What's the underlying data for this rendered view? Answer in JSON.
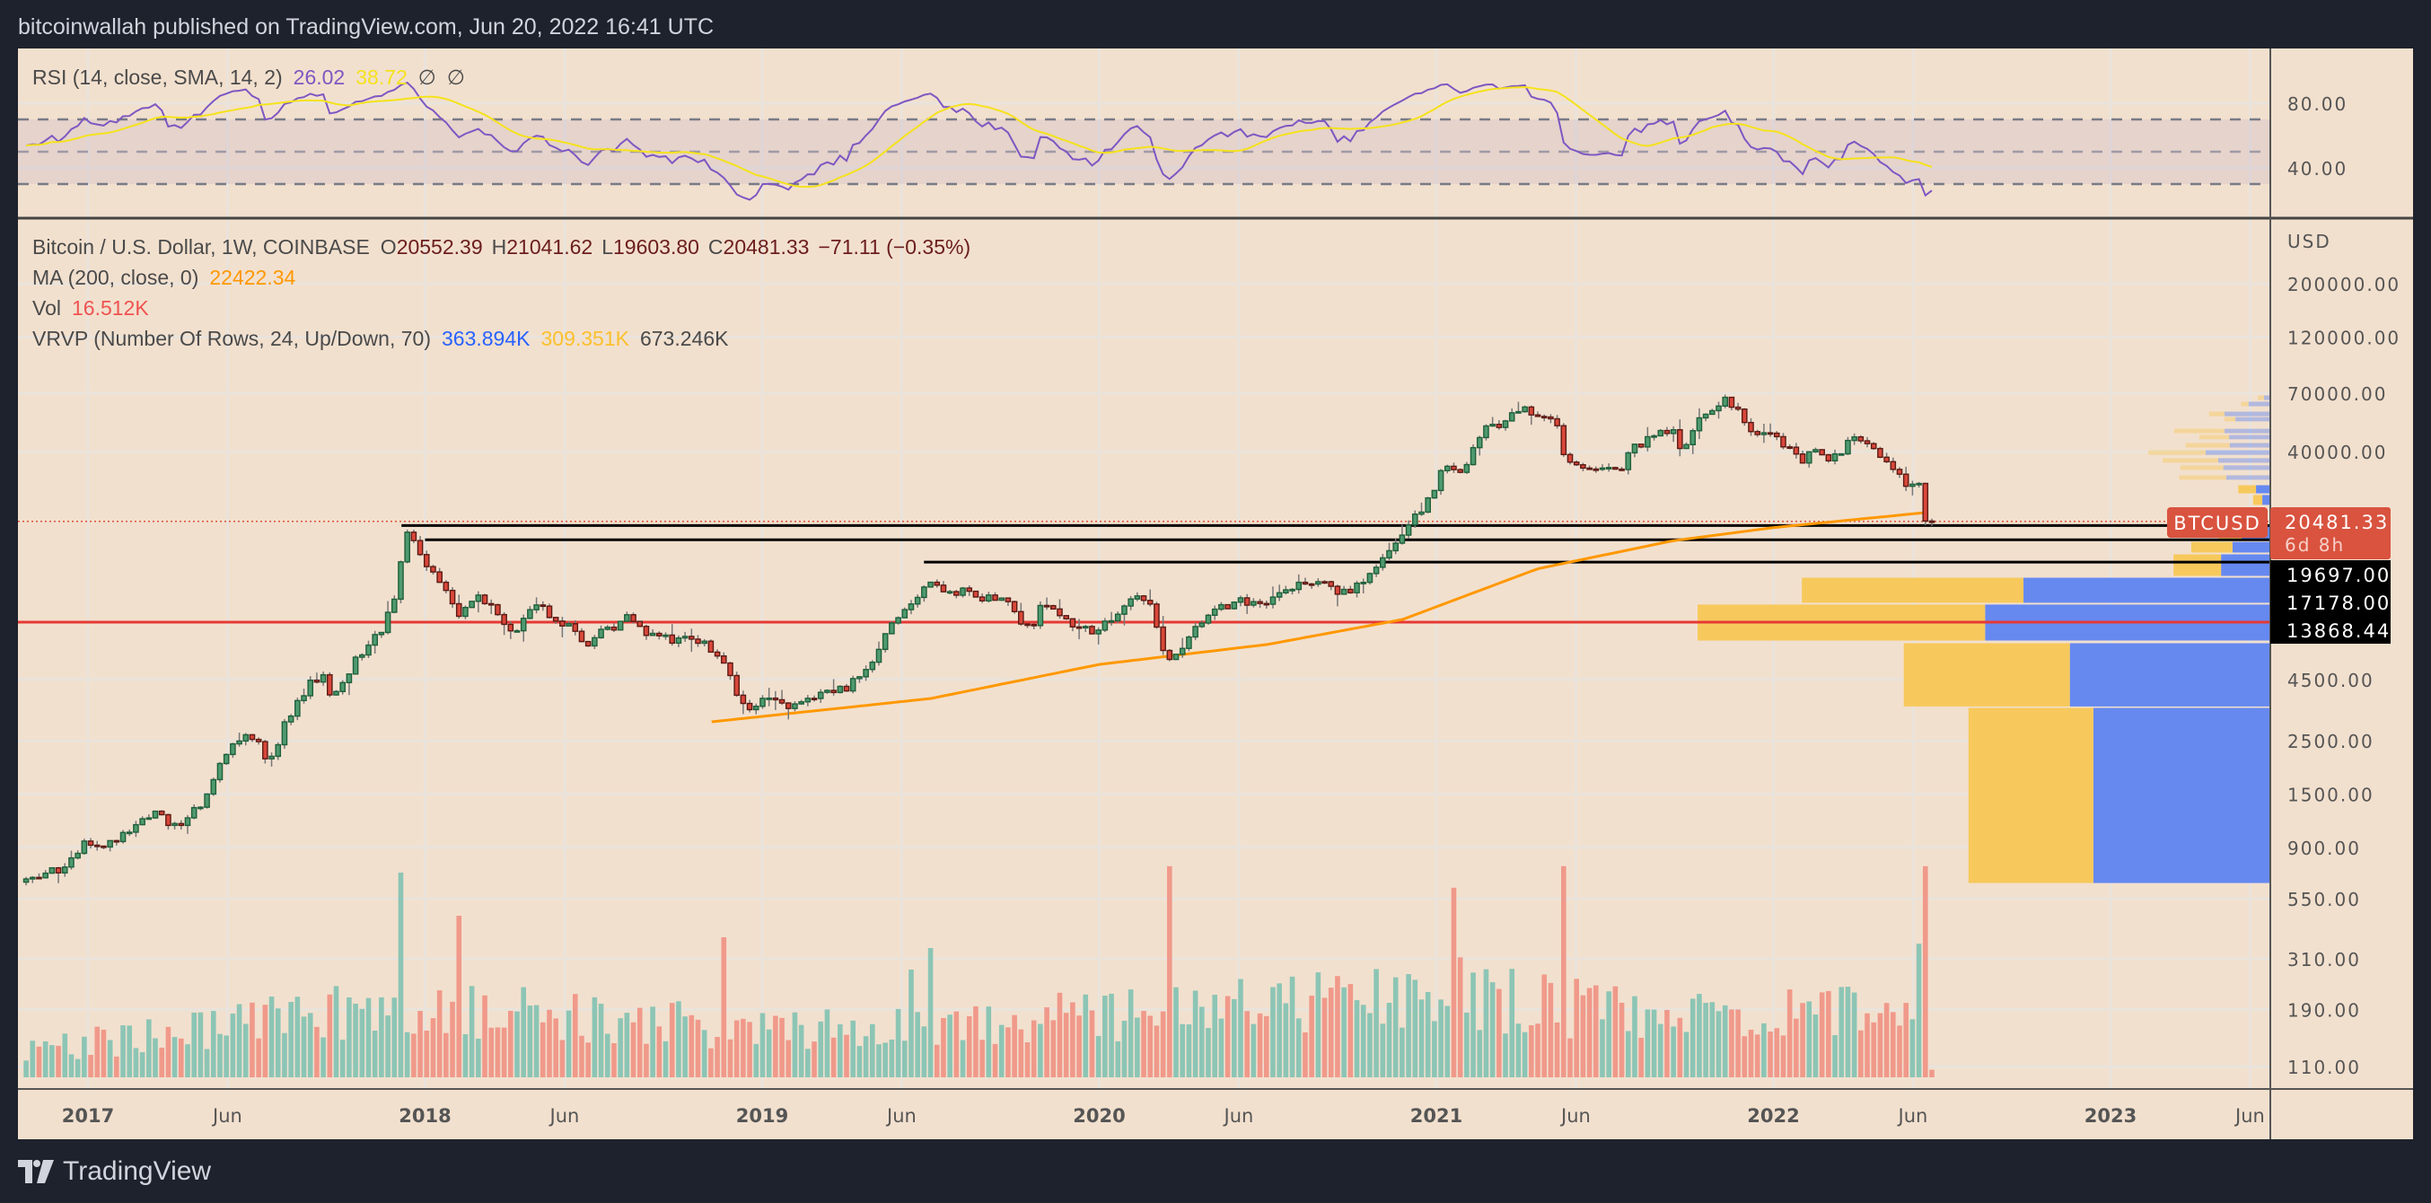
{
  "header": {
    "publish_text": "bitcoinwallah published on TradingView.com, Jun 20, 2022 16:41 UTC"
  },
  "footer": {
    "brand": "TradingView"
  },
  "rsi_legend": {
    "label": "RSI (14, close, SMA, 14, 2)",
    "rsi_value": "26.02",
    "sma_value": "38.72",
    "icon1": "∅",
    "icon2": "∅"
  },
  "price_legend": {
    "symbol": "Bitcoin / U.S. Dollar, 1W, COINBASE",
    "o_label": "O",
    "o": "20552.39",
    "h_label": "H",
    "h": "21041.62",
    "l_label": "L",
    "l": "19603.80",
    "c_label": "C",
    "c": "20481.33",
    "change": "−71.11 (−0.35%)",
    "ma_label": "MA (200, close, 0)",
    "ma_value": "22422.34",
    "vol_label": "Vol",
    "vol_value": "16.512K",
    "vrvp_label": "VRVP (Number Of Rows, 24, Up/Down, 70)",
    "vrvp_up": "363.894K",
    "vrvp_down": "309.351K",
    "vrvp_total": "673.246K"
  },
  "colors": {
    "bg": "#f2e0ce",
    "up": "#4e9a6e",
    "up_border": "#1f5f3b",
    "down": "#d9473a",
    "down_border": "#5a1a14",
    "vol_up": "#8cc5b5",
    "vol_down": "#f0998a",
    "ma": "#ff9800",
    "rsi": "#7e57c2",
    "rsi_sma": "#f5e21b",
    "vrvp_up": "#6689f0",
    "vrvp_down": "#f7c95c",
    "price_label": "#d9533f"
  },
  "chart_data": {
    "type": "candlestick",
    "title": "Bitcoin / U.S. Dollar, 1W, COINBASE",
    "scale": "log",
    "currency_label": "USD",
    "last_candle": {
      "open": 20552.39,
      "high": 21041.62,
      "low": 19603.8,
      "close": 20481.33
    },
    "close_anchors": [
      [
        2016.79,
        640
      ],
      [
        2016.92,
        740
      ],
      [
        2017.0,
        960
      ],
      [
        2017.08,
        920
      ],
      [
        2017.16,
        1190
      ],
      [
        2017.21,
        1250
      ],
      [
        2017.25,
        1080
      ],
      [
        2017.33,
        1350
      ],
      [
        2017.42,
        2300
      ],
      [
        2017.46,
        2700
      ],
      [
        2017.5,
        2480
      ],
      [
        2017.54,
        2000
      ],
      [
        2017.58,
        2870
      ],
      [
        2017.66,
        4300
      ],
      [
        2017.7,
        4700
      ],
      [
        2017.72,
        3700
      ],
      [
        2017.75,
        4340
      ],
      [
        2017.83,
        6450
      ],
      [
        2017.87,
        7300
      ],
      [
        2017.91,
        10000
      ],
      [
        2017.95,
        19000
      ],
      [
        2017.99,
        13800
      ],
      [
        2018.04,
        11500
      ],
      [
        2018.1,
        8200
      ],
      [
        2018.16,
        10300
      ],
      [
        2018.2,
        9000
      ],
      [
        2018.25,
        6900
      ],
      [
        2018.33,
        9200
      ],
      [
        2018.42,
        7500
      ],
      [
        2018.48,
        6400
      ],
      [
        2018.57,
        7700
      ],
      [
        2018.6,
        8200
      ],
      [
        2018.66,
        7000
      ],
      [
        2018.75,
        6600
      ],
      [
        2018.83,
        6300
      ],
      [
        2018.88,
        5600
      ],
      [
        2018.92,
        4000
      ],
      [
        2018.96,
        3300
      ],
      [
        2019.0,
        3700
      ],
      [
        2019.08,
        3450
      ],
      [
        2019.16,
        3800
      ],
      [
        2019.25,
        4100
      ],
      [
        2019.33,
        5300
      ],
      [
        2019.38,
        8000
      ],
      [
        2019.42,
        8600
      ],
      [
        2019.48,
        11000
      ],
      [
        2019.5,
        11800
      ],
      [
        2019.55,
        10000
      ],
      [
        2019.6,
        10500
      ],
      [
        2019.66,
        9600
      ],
      [
        2019.72,
        10000
      ],
      [
        2019.75,
        8300
      ],
      [
        2019.8,
        7500
      ],
      [
        2019.83,
        9150
      ],
      [
        2019.92,
        7550
      ],
      [
        2019.96,
        7200
      ],
      [
        2020.0,
        7200
      ],
      [
        2020.08,
        9350
      ],
      [
        2020.12,
        10200
      ],
      [
        2020.16,
        8600
      ],
      [
        2020.2,
        5300
      ],
      [
        2020.25,
        6400
      ],
      [
        2020.33,
        8600
      ],
      [
        2020.42,
        9450
      ],
      [
        2020.5,
        9140
      ],
      [
        2020.58,
        11350
      ],
      [
        2020.66,
        11650
      ],
      [
        2020.7,
        10500
      ],
      [
        2020.75,
        10780
      ],
      [
        2020.83,
        13800
      ],
      [
        2020.9,
        18500
      ],
      [
        2020.92,
        19700
      ],
      [
        2020.96,
        23000
      ],
      [
        2021.0,
        29000
      ],
      [
        2021.03,
        36000
      ],
      [
        2021.06,
        32000
      ],
      [
        2021.1,
        38000
      ],
      [
        2021.14,
        47000
      ],
      [
        2021.16,
        57000
      ],
      [
        2021.18,
        47000
      ],
      [
        2021.22,
        58000
      ],
      [
        2021.26,
        59000
      ],
      [
        2021.3,
        56000
      ],
      [
        2021.33,
        57700
      ],
      [
        2021.36,
        50000
      ],
      [
        2021.38,
        37000
      ],
      [
        2021.42,
        36000
      ],
      [
        2021.46,
        35000
      ],
      [
        2021.5,
        34000
      ],
      [
        2021.55,
        33000
      ],
      [
        2021.58,
        41500
      ],
      [
        2021.66,
        47100
      ],
      [
        2021.7,
        50000
      ],
      [
        2021.72,
        43000
      ],
      [
        2021.75,
        43800
      ],
      [
        2021.8,
        60000
      ],
      [
        2021.83,
        61300
      ],
      [
        2021.86,
        65000
      ],
      [
        2021.9,
        57000
      ],
      [
        2021.92,
        50000
      ],
      [
        2021.96,
        47000
      ],
      [
        2022.0,
        46300
      ],
      [
        2022.04,
        42000
      ],
      [
        2022.08,
        36000
      ],
      [
        2022.12,
        42000
      ],
      [
        2022.16,
        38000
      ],
      [
        2022.2,
        39000
      ],
      [
        2022.23,
        45500
      ],
      [
        2022.27,
        46500
      ],
      [
        2022.31,
        40000
      ],
      [
        2022.33,
        38000
      ],
      [
        2022.36,
        34000
      ],
      [
        2022.38,
        30000
      ],
      [
        2022.42,
        29500
      ],
      [
        2022.44,
        28000
      ],
      [
        2022.45,
        20552.39
      ],
      [
        2022.47,
        20481.33
      ]
    ],
    "ma200_anchors": [
      [
        2018.85,
        3000
      ],
      [
        2019.5,
        3750
      ],
      [
        2020.0,
        5200
      ],
      [
        2020.5,
        6300
      ],
      [
        2020.9,
        8000
      ],
      [
        2021.3,
        13000
      ],
      [
        2021.7,
        17000
      ],
      [
        2022.0,
        19300
      ],
      [
        2022.47,
        22422.34
      ]
    ],
    "volume_base": [
      [
        2016.8,
        0.12
      ],
      [
        2017.9,
        0.33
      ],
      [
        2018.2,
        0.3
      ],
      [
        2019.0,
        0.22
      ],
      [
        2020.0,
        0.28
      ],
      [
        2021.0,
        0.4
      ],
      [
        2021.5,
        0.3
      ],
      [
        2022.47,
        0.3
      ]
    ],
    "volume_spikes": [
      [
        2017.93,
        0.95
      ],
      [
        2018.1,
        0.75
      ],
      [
        2018.88,
        0.65
      ],
      [
        2019.45,
        0.5
      ],
      [
        2019.5,
        0.6
      ],
      [
        2020.2,
        0.98
      ],
      [
        2021.05,
        0.88
      ],
      [
        2021.38,
        0.98
      ],
      [
        2022.44,
        0.62
      ],
      [
        2022.46,
        0.98
      ]
    ],
    "horizontal_lines": [
      {
        "price": 19697.0,
        "label": "19697.00",
        "from": 2017.93,
        "color": "#000000"
      },
      {
        "price": 17178.0,
        "label": "17178.00",
        "from": 2018.0,
        "color": "#000000"
      },
      {
        "price": 13868.44,
        "label": "13868.44",
        "from": 2019.48,
        "color": "#000000"
      },
      {
        "price": 7800,
        "label": "",
        "from": 2016.79,
        "color": "#e53935"
      }
    ],
    "last_price": {
      "symbol": "BTCUSD",
      "price": "20481.33",
      "countdown": "6d 8h",
      "value": 20481.33
    },
    "vrvp_rows": [
      [
        637,
        3443,
        0.309,
        0.218
      ],
      [
        3460,
        6400,
        0.35,
        0.29
      ],
      [
        6510,
        9270,
        0.498,
        0.502
      ],
      [
        9350,
        11990,
        0.431,
        0.387
      ],
      [
        12100,
        15000,
        0.086,
        0.083
      ],
      [
        15130,
        16900,
        0.066,
        0.072
      ],
      [
        17000,
        19900,
        0.05,
        0.04
      ],
      [
        23900,
        26480,
        0.014,
        0.016
      ],
      [
        26700,
        29100,
        0.025,
        0.031
      ],
      [
        30400,
        32000,
        0.077,
        0.082
      ],
      [
        33400,
        35200,
        0.082,
        0.075
      ],
      [
        35800,
        37700,
        0.091,
        0.097
      ],
      [
        38600,
        40700,
        0.113,
        0.1
      ],
      [
        41400,
        43600,
        0.071,
        0.077
      ],
      [
        44800,
        47100,
        0.072,
        0.052
      ],
      [
        47500,
        50000,
        0.08,
        0.088
      ],
      [
        53200,
        55900,
        0.061,
        0.019
      ],
      [
        55900,
        58900,
        0.08,
        0.027
      ],
      [
        61500,
        64800,
        0.038,
        0.013
      ],
      [
        65300,
        68800,
        0.011,
        0.011
      ]
    ],
    "price_axis_ticks": [
      200000,
      120000,
      70000,
      40000,
      4500,
      2500,
      1500,
      900,
      550,
      310,
      190,
      110
    ],
    "price_axis_labels": [
      "200000.00",
      "120000.00",
      "70000.00",
      "40000.00",
      "4500.00",
      "2500.00",
      "1500.00",
      "900.00",
      "550.00",
      "310.00",
      "190.00",
      "110.00"
    ],
    "rsi_axis": {
      "ticks": [
        80,
        40
      ],
      "labels": [
        "80.00",
        "40.00"
      ],
      "levels": [
        70,
        50,
        30
      ]
    },
    "time_axis": [
      {
        "t": 2017.0,
        "label": "2017",
        "year": true
      },
      {
        "t": 2017.414,
        "label": "Jun",
        "year": false
      },
      {
        "t": 2018.0,
        "label": "2018",
        "year": true
      },
      {
        "t": 2018.414,
        "label": "Jun",
        "year": false
      },
      {
        "t": 2019.0,
        "label": "2019",
        "year": true
      },
      {
        "t": 2019.414,
        "label": "Jun",
        "year": false
      },
      {
        "t": 2020.0,
        "label": "2020",
        "year": true
      },
      {
        "t": 2020.414,
        "label": "Jun",
        "year": false
      },
      {
        "t": 2021.0,
        "label": "2021",
        "year": true
      },
      {
        "t": 2021.414,
        "label": "Jun",
        "year": false
      },
      {
        "t": 2022.0,
        "label": "2022",
        "year": true
      },
      {
        "t": 2022.414,
        "label": "Jun",
        "year": false
      },
      {
        "t": 2023.0,
        "label": "2023",
        "year": true
      },
      {
        "t": 2023.414,
        "label": "Jun",
        "year": false
      }
    ]
  }
}
